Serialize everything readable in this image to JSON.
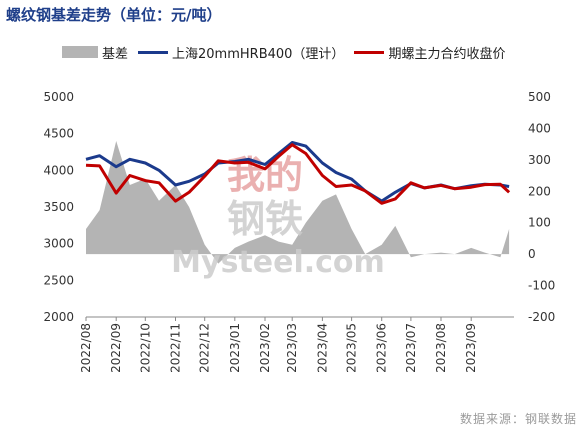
{
  "title": "螺纹钢基差走势（单位：元/吨）",
  "source": "数据来源：钢联数据",
  "watermark": {
    "cn_top": "我的",
    "cn_bottom": "钢铁",
    "en": "Mysteel.com"
  },
  "colors": {
    "basis": "#b4b4b4",
    "spot": "#1b3a8c",
    "futures": "#c00000",
    "watermark_red": "#e7a3a3",
    "watermark_gray": "#cccccc"
  },
  "chart_data": {
    "type": "line",
    "x": [
      "2022-08-01",
      "2022-08-15",
      "2022-09-01",
      "2022-09-15",
      "2022-10-01",
      "2022-10-15",
      "2022-11-01",
      "2022-11-15",
      "2022-12-01",
      "2022-12-15",
      "2023-01-01",
      "2023-01-15",
      "2023-02-01",
      "2023-02-15",
      "2023-03-01",
      "2023-03-15",
      "2023-04-01",
      "2023-04-15",
      "2023-05-01",
      "2023-05-15",
      "2023-06-01",
      "2023-06-15",
      "2023-07-01",
      "2023-07-15",
      "2023-08-01",
      "2023-08-15",
      "2023-09-01",
      "2023-09-15",
      "2023-10-01",
      "2023-10-10"
    ],
    "x_ticks": [
      "2022/08",
      "2022/09",
      "2022/10",
      "2022/11",
      "2022/12",
      "2023/01",
      "2023/02",
      "2023/03",
      "2023/04",
      "2023/05",
      "2023/06",
      "2023/07",
      "2023/08",
      "2023/09"
    ],
    "y_left": {
      "range": [
        2000,
        5000
      ],
      "ticks": [
        2000,
        2500,
        3000,
        3500,
        4000,
        4500,
        5000
      ]
    },
    "y_right": {
      "range": [
        -200,
        500
      ],
      "ticks": [
        -200,
        -100,
        0,
        100,
        200,
        300,
        400,
        500
      ]
    },
    "series": [
      {
        "name": "基差",
        "axis": "right",
        "kind": "area",
        "values": [
          80,
          140,
          360,
          220,
          240,
          170,
          220,
          150,
          30,
          -30,
          20,
          40,
          60,
          40,
          30,
          100,
          170,
          190,
          80,
          0,
          30,
          90,
          -10,
          0,
          5,
          0,
          20,
          5,
          -10,
          80
        ]
      },
      {
        "name": "上海20mmHRB400（理计）",
        "axis": "left",
        "kind": "line",
        "values": [
          4150,
          4200,
          4050,
          4150,
          4100,
          4000,
          3800,
          3850,
          3950,
          4100,
          4120,
          4150,
          4080,
          4230,
          4380,
          4330,
          4100,
          3970,
          3880,
          3720,
          3580,
          3700,
          3820,
          3760,
          3800,
          3750,
          3790,
          3810,
          3800,
          3780
        ]
      },
      {
        "name": "期螺主力合约收盘价",
        "axis": "left",
        "kind": "line",
        "values": [
          4070,
          4060,
          3690,
          3930,
          3860,
          3830,
          3580,
          3700,
          3920,
          4130,
          4100,
          4110,
          4020,
          4190,
          4350,
          4230,
          3930,
          3780,
          3800,
          3720,
          3550,
          3610,
          3830,
          3760,
          3795,
          3750,
          3770,
          3805,
          3810,
          3700
        ]
      }
    ]
  }
}
